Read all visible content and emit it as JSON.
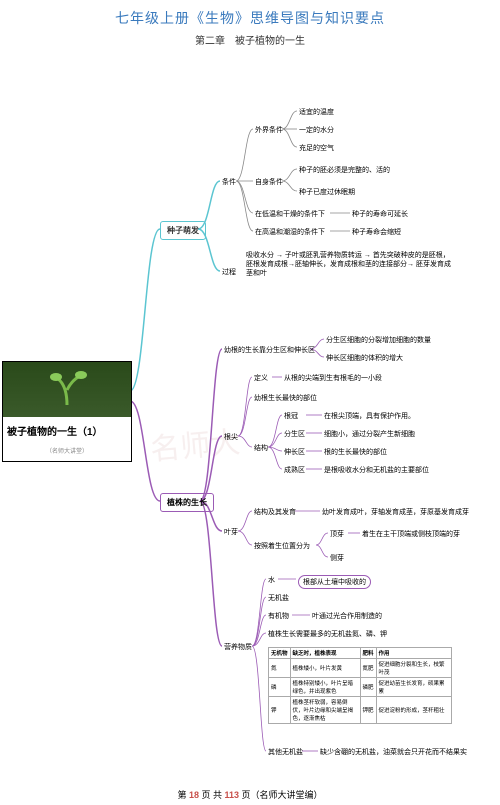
{
  "header": {
    "title": "七年级上册《生物》思维导图与知识要点",
    "title_color": "#3a7abd",
    "subtitle": "第二章　被子植物的一生"
  },
  "root": {
    "label": "被子植物的一生（1）",
    "sublabel": "（名师大讲堂）"
  },
  "colors": {
    "cyan": "#5bc5d1",
    "purple": "#9b5bb5",
    "text": "#333333"
  },
  "topics": {
    "germination": {
      "label": "种子萌发",
      "cond": {
        "label": "条件",
        "ext": {
          "label": "外界条件",
          "items": [
            "适宜的温度",
            "一定的水分",
            "充足的空气"
          ]
        },
        "self": {
          "label": "自身条件",
          "items": [
            "种子的胚必须是完整的、活的",
            "种子已度过休眠期"
          ]
        },
        "lowtemp": {
          "l": "在低温和干燥的条件下",
          "r": "种子的寿命可延长"
        },
        "hitemp": {
          "l": "在高温和潮湿的条件下",
          "r": "种子寿命会缩短"
        }
      },
      "proc": {
        "label": "过程",
        "text": "吸收水分 → 子叶或胚乳营养物质转运 → 首先突破种皮的是胚根，胚根发育成根→胚轴伸长，发育成根和茎的连接部分→ 胚芽发育成 茎和叶"
      }
    },
    "growth": {
      "label": "植株的生长",
      "root_growth": {
        "l": "幼根的生长靠分生区和伸长区",
        "items": [
          "分生区细胞的分裂增加细胞的数量",
          "伸长区细胞的体积的增大"
        ]
      },
      "root_tip": {
        "label": "根尖",
        "def": {
          "l": "定义",
          "r": "从根的尖端到生有根毛的一小段"
        },
        "fast": "幼根生长最快的部位",
        "struct": {
          "label": "结构",
          "items": [
            {
              "l": "根冠",
              "r": "在根尖顶端，具有保护作用。"
            },
            {
              "l": "分生区",
              "r": "细胞小，通过分裂产生新细胞"
            },
            {
              "l": "伸长区",
              "r": "根的生长最快的部位"
            },
            {
              "l": "成熟区",
              "r": "是根吸收水分和无机盐的主要部位"
            }
          ]
        }
      },
      "bud": {
        "label": "叶芽",
        "s1": {
          "l": "结构及其发育",
          "r": "幼叶发育成叶，芽轴发育成茎，芽原基发育成芽"
        },
        "s2": {
          "l": "按照着生位置分为",
          "items": [
            {
              "l": "顶芽",
              "r": "着生在主干顶端或侧枝顶端的芽"
            },
            {
              "l": "侧芽",
              "r": ""
            }
          ]
        }
      },
      "nutrition": {
        "label": "营养物质",
        "water": {
          "l": "水",
          "r": "根部从土壤中吸收的"
        },
        "inorg": {
          "l": "无机盐"
        },
        "org": {
          "l": "有机物",
          "r": "叶通过光合作用制造的"
        },
        "need": "植株生长需要最多的无机盐氮、磷、钾",
        "table": {
          "headers": [
            "无机物",
            "缺乏时，植株表现",
            "肥料",
            "作用"
          ],
          "rows": [
            [
              "氮",
              "植株矮小，叶片发黄",
              "氮肥",
              "促进细胞分裂和生长，枝繁叶茂"
            ],
            [
              "磷",
              "植株特别矮小，叶片呈暗绿色，并出现紫色",
              "磷肥",
              "促进幼苗生长发育，硕果累累"
            ],
            [
              "钾",
              "植株茎秆软弱，容易倒伏，叶片边缘和尖端呈褐色，逐渐焦枯",
              "钾肥",
              "促进淀粉的形成，茎秆粗壮"
            ]
          ]
        },
        "other": {
          "l": "其他无机盐",
          "r": "缺少含硼的无机盐，油菜就会只开花而不结果实"
        }
      }
    }
  },
  "footer": {
    "pre": "第 ",
    "cur": "18",
    "mid": " 页 共 ",
    "tot": "113",
    "suf": " 页（名师大讲堂编）",
    "color_num": "#c8504a"
  }
}
